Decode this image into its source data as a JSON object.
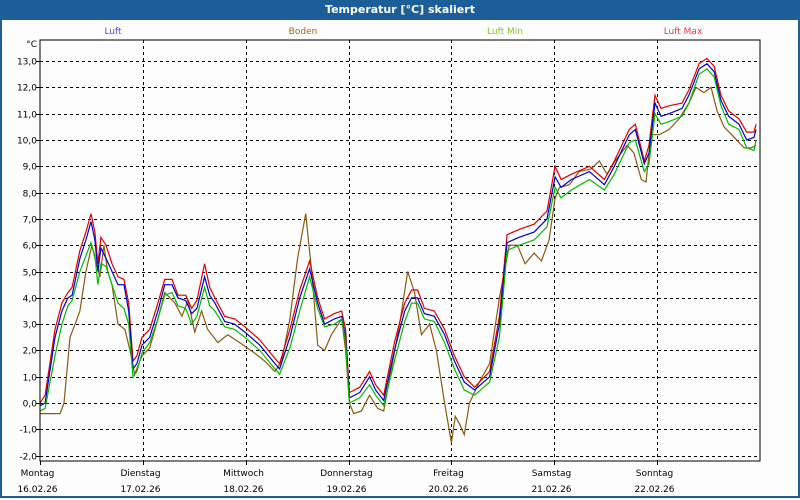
{
  "window": {
    "title": "Temperatur [°C] skaliert"
  },
  "chart_data": {
    "type": "line",
    "title": "Temperatur [°C] skaliert",
    "ylabel": "°C",
    "xlabel": "",
    "ylim": [
      -2.2,
      13.8
    ],
    "xlim_hours": [
      0,
      168
    ],
    "grid": true,
    "legend_placement": "top",
    "y_ticks": [
      "13,0",
      "12,0",
      "11,0",
      "10,0",
      "9,0",
      "8,0",
      "7,0",
      "6,0",
      "5,0",
      "4,0",
      "3,0",
      "2,0",
      "1,0",
      "0,0",
      "-1,0",
      "-2,0"
    ],
    "y_tick_values": [
      13,
      12,
      11,
      10,
      9,
      8,
      7,
      6,
      5,
      4,
      3,
      2,
      1,
      0,
      -1,
      -2
    ],
    "x_ticks": [
      {
        "day": "Montag",
        "date": "16.02.26"
      },
      {
        "day": "Dienstag",
        "date": "17.02.26"
      },
      {
        "day": "Mittwoch",
        "date": "18.02.26"
      },
      {
        "day": "Donnerstag",
        "date": "19.02.26"
      },
      {
        "day": "Freitag",
        "date": "20.02.26"
      },
      {
        "day": "Samstag",
        "date": "21.02.26"
      },
      {
        "day": "Sonntag",
        "date": "22.02.26"
      }
    ],
    "x_hours": [
      0,
      1.2,
      3.5,
      5.1,
      6.5,
      7.5,
      9.3,
      10.7,
      11.9,
      12.8,
      13.5,
      14.2,
      15.4,
      16.8,
      18.2,
      19.6,
      20.7,
      21.7,
      22.6,
      23.8,
      25.6,
      27.5,
      29.1,
      30.8,
      32.2,
      34,
      35.4,
      36.6,
      38.4,
      39.6,
      40.8,
      43.1,
      45.4,
      47.8,
      51.3,
      54.8,
      55.9,
      58.3,
      60.6,
      62.9,
      64.8,
      66.4,
      68.7,
      70.4,
      71.3,
      72.2,
      74.6,
      76.9,
      78.3,
      80.2,
      82.7,
      85.1,
      86.7,
      88.1,
      89.7,
      92,
      94.4,
      96.7,
      99,
      101.4,
      104.9,
      107.2,
      109,
      111.8,
      115.3,
      118.3,
      120.2,
      121.6,
      124,
      128.2,
      131.7,
      134,
      137.5,
      138.9,
      141,
      142.1,
      143.5,
      144.9,
      146.8,
      149.8,
      151.4,
      153.8,
      155.6,
      157.3,
      158.9,
      160.7,
      163.1,
      164.9,
      166.6,
      167.1
    ],
    "series": [
      {
        "name": "Luft",
        "color": "#0000cc",
        "legend_color": "#6a3fd0",
        "values": [
          -0.1,
          0.0,
          2.5,
          3.5,
          4.0,
          4.1,
          5.5,
          6.2,
          6.9,
          6.2,
          5.0,
          5.9,
          5.5,
          5.0,
          4.5,
          4.5,
          3.5,
          1.3,
          1.5,
          2.2,
          2.5,
          3.5,
          4.5,
          4.5,
          4.0,
          3.9,
          3.4,
          3.6,
          4.8,
          4.1,
          3.8,
          3.1,
          3.0,
          2.7,
          2.2,
          1.5,
          1.3,
          2.5,
          4.0,
          5.1,
          3.8,
          3.0,
          3.2,
          3.3,
          2.5,
          0.2,
          0.4,
          1.0,
          0.5,
          0.1,
          2.0,
          3.5,
          4.0,
          4.0,
          3.4,
          3.3,
          2.6,
          1.6,
          0.8,
          0.5,
          1.0,
          3.0,
          6.1,
          6.3,
          6.5,
          7.0,
          8.6,
          8.2,
          8.5,
          8.8,
          8.3,
          9.0,
          10.2,
          10.4,
          9.1,
          9.5,
          11.4,
          10.9,
          11.0,
          11.2,
          11.7,
          12.7,
          12.9,
          12.6,
          11.5,
          10.9,
          10.6,
          10.0,
          10.1,
          10.4
        ]
      },
      {
        "name": "Boden",
        "color": "#8a5a10",
        "legend_color": "#a0661a",
        "x_hours": [
          0,
          4.7,
          5.6,
          7,
          8.2,
          9.3,
          10.7,
          12.1,
          12.8,
          14,
          14.9,
          15.8,
          16.8,
          18.2,
          19.8,
          21,
          22.1,
          23.8,
          25.6,
          27.5,
          29.1,
          31.5,
          33.1,
          34.5,
          36.1,
          37.7,
          39.1,
          41.5,
          43.8,
          46.6,
          50.1,
          52.4,
          54.8,
          56.4,
          58.3,
          60.1,
          62,
          63.4,
          64.8,
          66.4,
          68,
          70.4,
          71.3,
          72.2,
          73.2,
          75,
          76.9,
          78.8,
          80.2,
          82,
          83.9,
          85.8,
          87.4,
          89,
          90.9,
          92.5,
          94.4,
          96,
          96.9,
          97.9,
          99,
          100.2,
          102.5,
          104.9,
          107.2,
          109.5,
          111.4,
          113.2,
          115.3,
          117,
          118.8,
          120.2,
          121.2,
          123.5,
          125.8,
          128.6,
          130.5,
          132.3,
          134.2,
          137,
          138.6,
          140.3,
          141.4,
          142.6,
          144.5,
          146.8,
          149.1,
          151.4,
          153.1,
          154.9,
          156.6,
          158,
          159.6,
          162,
          164.3,
          165.9,
          167.1
        ],
        "values": [
          -0.4,
          -0.4,
          0.0,
          2.5,
          3.0,
          3.5,
          5.0,
          6.0,
          5.5,
          4.8,
          6.0,
          5.0,
          4.5,
          3.0,
          2.8,
          2.0,
          1.1,
          1.8,
          2.1,
          3.2,
          4.2,
          3.8,
          3.3,
          3.9,
          2.7,
          3.5,
          2.8,
          2.3,
          2.6,
          2.3,
          1.9,
          1.6,
          1.2,
          1.6,
          3.2,
          5.5,
          7.2,
          5.0,
          2.2,
          2.0,
          2.6,
          3.2,
          2.0,
          0.0,
          -0.4,
          -0.3,
          0.3,
          -0.2,
          -0.3,
          1.3,
          3.0,
          5.0,
          4.2,
          2.6,
          3.0,
          2.0,
          0.0,
          -1.5,
          -0.5,
          -0.8,
          -1.2,
          0.0,
          0.8,
          1.5,
          4.0,
          6.0,
          6.0,
          5.3,
          5.7,
          5.4,
          6.2,
          7.8,
          8.2,
          8.3,
          8.8,
          8.9,
          9.2,
          8.7,
          9.2,
          9.8,
          9.5,
          8.5,
          8.4,
          10.2,
          10.2,
          10.4,
          10.8,
          11.4,
          12.0,
          11.8,
          12.0,
          11.1,
          10.5,
          10.1,
          9.7,
          9.7,
          9.8
        ]
      },
      {
        "name": "Luft Min",
        "color": "#00bb00",
        "legend_color": "#7ccc10",
        "values": [
          -0.3,
          -0.2,
          1.8,
          3.0,
          3.7,
          3.9,
          5.0,
          5.6,
          6.1,
          5.6,
          4.5,
          5.3,
          5.2,
          4.5,
          3.8,
          3.6,
          3.0,
          1.0,
          1.2,
          1.9,
          2.3,
          3.2,
          4.1,
          4.2,
          3.7,
          3.6,
          3.0,
          3.3,
          4.4,
          3.7,
          3.5,
          2.9,
          2.8,
          2.5,
          2.0,
          1.3,
          1.1,
          2.1,
          3.5,
          4.8,
          3.6,
          2.9,
          3.0,
          3.2,
          2.3,
          0.0,
          0.2,
          0.7,
          0.3,
          -0.1,
          1.6,
          3.1,
          3.8,
          3.8,
          3.2,
          3.1,
          2.3,
          1.3,
          0.5,
          0.3,
          0.8,
          2.5,
          5.8,
          6.0,
          6.2,
          6.7,
          8.2,
          7.8,
          8.1,
          8.5,
          8.1,
          8.7,
          9.9,
          10.0,
          8.8,
          9.1,
          11.0,
          10.6,
          10.7,
          10.9,
          11.4,
          12.5,
          12.7,
          12.4,
          11.3,
          10.6,
          10.4,
          9.7,
          9.6,
          10.0
        ]
      },
      {
        "name": "Luft Max",
        "color": "#dd0000",
        "legend_color": "#e03a4a",
        "values": [
          0.0,
          0.3,
          2.8,
          3.8,
          4.2,
          4.4,
          5.8,
          6.5,
          7.2,
          6.5,
          5.3,
          6.3,
          6.0,
          5.3,
          4.8,
          4.7,
          3.8,
          1.6,
          1.8,
          2.5,
          2.8,
          3.8,
          4.7,
          4.7,
          4.1,
          4.1,
          3.6,
          3.9,
          5.3,
          4.4,
          4.0,
          3.3,
          3.2,
          2.9,
          2.4,
          1.7,
          1.5,
          2.8,
          4.3,
          5.4,
          4.0,
          3.2,
          3.4,
          3.5,
          2.8,
          0.4,
          0.6,
          1.2,
          0.7,
          0.3,
          2.3,
          3.8,
          4.3,
          4.3,
          3.6,
          3.5,
          2.8,
          1.8,
          1.0,
          0.6,
          1.2,
          3.3,
          6.4,
          6.6,
          6.8,
          7.3,
          9.0,
          8.5,
          8.7,
          9.0,
          8.5,
          9.2,
          10.4,
          10.6,
          9.2,
          9.8,
          11.7,
          11.2,
          11.3,
          11.4,
          11.9,
          12.9,
          13.1,
          12.8,
          11.7,
          11.1,
          10.8,
          10.3,
          10.3,
          10.6
        ]
      }
    ]
  }
}
